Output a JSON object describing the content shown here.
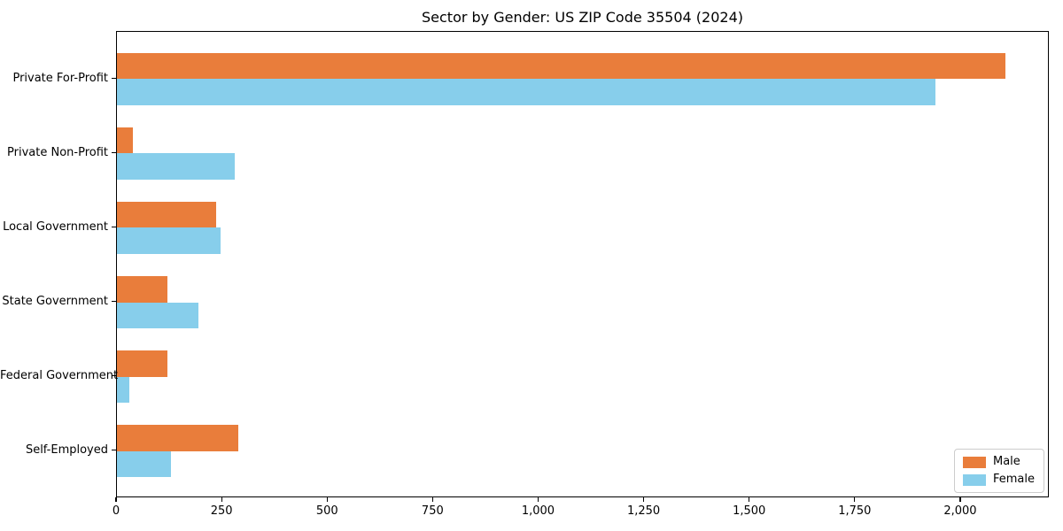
{
  "title": "Sector by Gender: US ZIP Code 35504 (2024)",
  "colors": {
    "male": "#E97D3B",
    "female": "#87CEEB",
    "spine": "#000000",
    "legend_border": "#cccccc",
    "background": "#ffffff"
  },
  "legend": {
    "position": "lower right",
    "items": [
      {
        "label": "Male",
        "color_key": "male"
      },
      {
        "label": "Female",
        "color_key": "female"
      }
    ]
  },
  "chart_data": {
    "type": "bar",
    "orientation": "horizontal",
    "title": "Sector by Gender: US ZIP Code 35504 (2024)",
    "categories": [
      "Private For-Profit",
      "Private Non-Profit",
      "Local Government",
      "State Government",
      "Federal Government",
      "Self-Employed"
    ],
    "series": [
      {
        "name": "Male",
        "color": "#E97D3B",
        "values": [
          2105,
          38,
          235,
          119,
          120,
          287
        ]
      },
      {
        "name": "Female",
        "color": "#87CEEB",
        "values": [
          1940,
          280,
          246,
          193,
          29,
          127
        ]
      }
    ],
    "xlabel": "",
    "ylabel": "",
    "xlim": [
      0,
      2210
    ],
    "x_ticks": [
      0,
      250,
      500,
      750,
      1000,
      1250,
      1500,
      1750,
      2000
    ],
    "x_tick_labels": [
      "0",
      "250",
      "500",
      "750",
      "1,000",
      "1,250",
      "1,500",
      "1,750",
      "2,000"
    ],
    "bar_height_fraction": 0.35,
    "y_margin_units": 0.635,
    "grid": false,
    "legend_position": "lower right"
  }
}
